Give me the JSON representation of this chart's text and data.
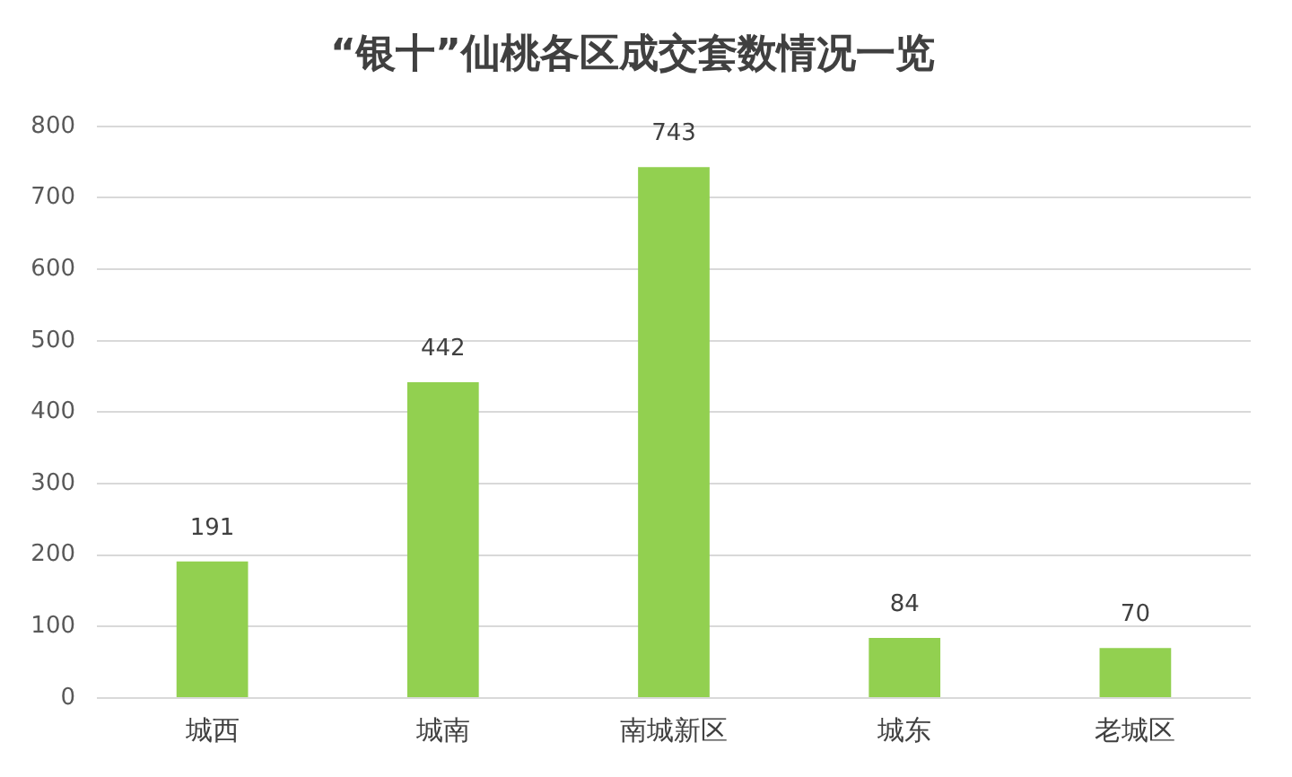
{
  "chart_data": {
    "type": "bar",
    "title": "“银十”仙桃各区成交套数情况一览",
    "categories": [
      "城西",
      "城南",
      "南城新区",
      "城东",
      "老城区"
    ],
    "values": [
      191,
      442,
      743,
      84,
      70
    ],
    "color": "#92d050",
    "ylim": [
      0,
      800
    ],
    "yticks": [
      0,
      100,
      200,
      300,
      400,
      500,
      600,
      700,
      800
    ],
    "grid": "y",
    "data_labels": true
  }
}
